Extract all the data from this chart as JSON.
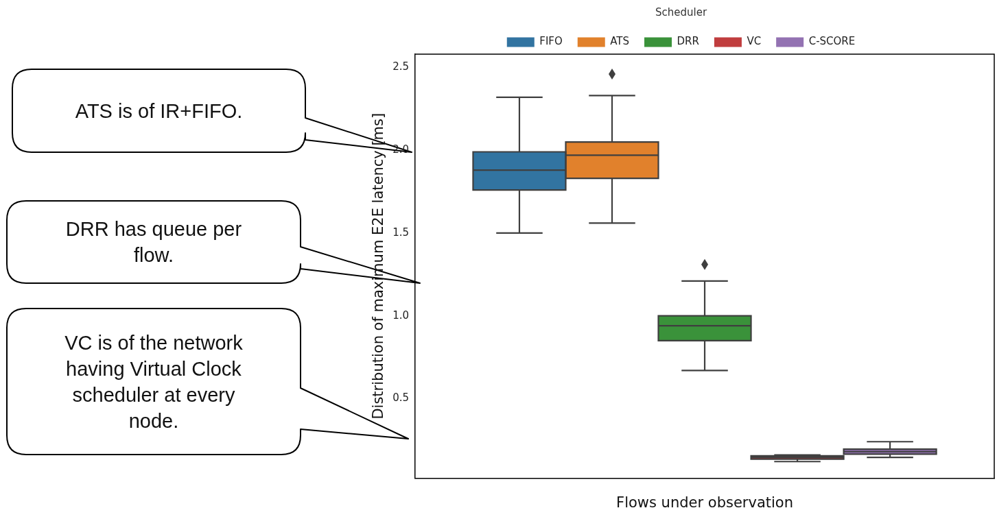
{
  "chart_data": {
    "type": "box",
    "xlabel": "Flows under observation",
    "ylabel": "Distribution of maximum E2E latency [ms]",
    "legend_title": "Scheduler",
    "legend": "top",
    "categories": [
      null
    ],
    "ylim": [
      0.02,
      2.58
    ],
    "yticks": [
      {
        "value": 0.5,
        "label": "0.5"
      },
      {
        "value": 1,
        "label": "1.0"
      },
      {
        "value": 1.5,
        "label": "1.5"
      },
      {
        "value": 2,
        "label": "2.0"
      },
      {
        "value": 2.5,
        "label": "2.5"
      }
    ],
    "series": [
      {
        "name": "FIFO",
        "color": "#3274a1",
        "boxes": [
          {
            "low": 1.5,
            "q1": 1.76,
            "median": 1.88,
            "q3": 1.99,
            "high": 2.32
          }
        ]
      },
      {
        "name": "ATS",
        "color": "#e1812c",
        "boxes": [
          {
            "low": 1.56,
            "q1": 1.83,
            "median": 1.97,
            "q3": 2.05,
            "high": 2.33,
            "outliers": [
              2.46
            ]
          }
        ]
      },
      {
        "name": "DRR",
        "color": "#3a923a",
        "boxes": [
          {
            "low": 0.67,
            "q1": 0.85,
            "median": 0.94,
            "q3": 1.0,
            "high": 1.21,
            "outliers": [
              1.31
            ]
          }
        ]
      },
      {
        "name": "VC",
        "color": "#c03d3e",
        "boxes": [
          {
            "low": 0.12,
            "q1": 0.135,
            "median": 0.145,
            "q3": 0.155,
            "high": 0.16
          }
        ]
      },
      {
        "name": "C-SCORE",
        "color": "#9372b2",
        "boxes": [
          {
            "low": 0.145,
            "q1": 0.165,
            "median": 0.18,
            "q3": 0.195,
            "high": 0.24
          }
        ]
      }
    ],
    "annotations": [
      "ATS is of IR+FIFO.",
      "DRR has queue per flow.",
      "VC is of the network having Virtual Clock scheduler at every node."
    ]
  }
}
